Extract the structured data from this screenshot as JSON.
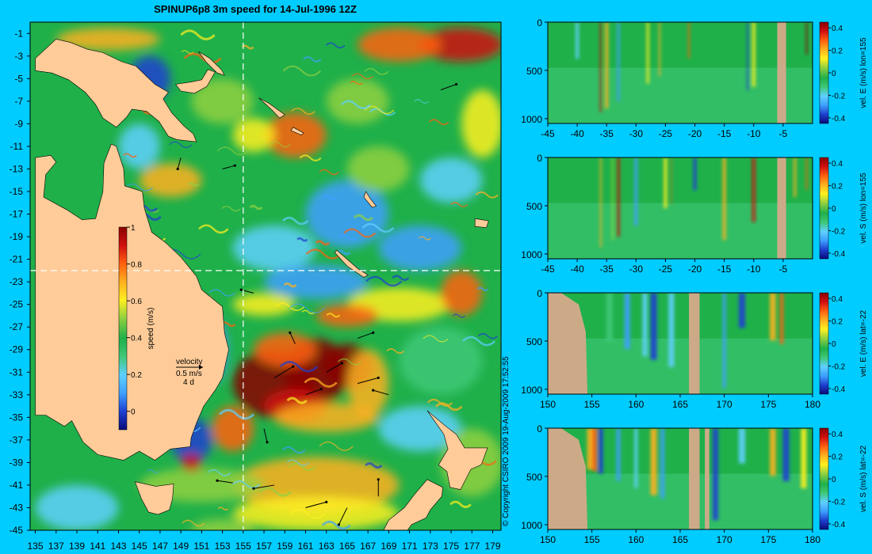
{
  "title": "SPINUP6p8 3m speed for 14-Jul-1996 12Z",
  "copyright": "© Copyright CSIRO 2009   19-Aug-2009 17:52:55",
  "colors": {
    "background": "#00ccff",
    "land": "#ffcc99",
    "section_land": "#ccaa88"
  },
  "colormap": [
    "#0a0a7a",
    "#1e40d0",
    "#3ea0ff",
    "#5fd0ff",
    "#40c878",
    "#1fb04a",
    "#90d040",
    "#fff020",
    "#ffb020",
    "#ff6010",
    "#d01010",
    "#8a0000"
  ],
  "chart_data": [
    {
      "type": "heatmap",
      "title": "SPINUP6p8 3m speed for 14-Jul-1996 12Z",
      "x_ticks": [
        "135",
        "137",
        "139",
        "141",
        "143",
        "145",
        "147",
        "149",
        "151",
        "153",
        "155",
        "157",
        "159",
        "161",
        "163",
        "165",
        "167",
        "169",
        "171",
        "173",
        "175",
        "177",
        "179"
      ],
      "y_ticks": [
        "-1",
        "-3",
        "-5",
        "-7",
        "-9",
        "-11",
        "-13",
        "-15",
        "-17",
        "-19",
        "-21",
        "-23",
        "-25",
        "-27",
        "-29",
        "-31",
        "-33",
        "-35",
        "-37",
        "-39",
        "-41",
        "-43",
        "-45"
      ],
      "xlim": [
        134.5,
        179.8
      ],
      "ylim": [
        -45,
        0
      ],
      "colorbar": {
        "label": "speed (m/s)",
        "ticks": [
          "1",
          "0.8",
          "0.6",
          "0.4",
          "0.2",
          "0"
        ],
        "range": [
          -0.1,
          1
        ]
      },
      "velocity_legend": {
        "label": "velocity",
        "speed": "0.5 m/s",
        "duration": "4 d"
      },
      "section_lines": {
        "lon": 155,
        "lat": -22
      }
    },
    {
      "type": "heatmap",
      "ylabel": "vel. E (m/s) lon=155",
      "x_ticks": [
        "-45",
        "-40",
        "-35",
        "-30",
        "-25",
        "-20",
        "-15",
        "-10",
        "-5"
      ],
      "xlim": [
        -45,
        0
      ],
      "y_ticks": [
        "0",
        "500",
        "1000"
      ],
      "ylim": [
        1050,
        0
      ],
      "colorbar_ticks": [
        "0.4",
        "0.2",
        "0",
        "-0.2",
        "-0.4"
      ],
      "crange": [
        -0.45,
        0.45
      ]
    },
    {
      "type": "heatmap",
      "ylabel": "vel. S (m/s) lon=155",
      "x_ticks": [
        "-45",
        "-40",
        "-35",
        "-30",
        "-25",
        "-20",
        "-15",
        "-10",
        "-5"
      ],
      "xlim": [
        -45,
        0
      ],
      "y_ticks": [
        "0",
        "500",
        "1000"
      ],
      "ylim": [
        1050,
        0
      ],
      "colorbar_ticks": [
        "0.4",
        "0.2",
        "0",
        "-0.2",
        "-0.4"
      ],
      "crange": [
        -0.45,
        0.45
      ]
    },
    {
      "type": "heatmap",
      "ylabel": "vel. E (m/s) lat=-22",
      "x_ticks": [
        "150",
        "155",
        "160",
        "165",
        "170",
        "175",
        "180"
      ],
      "xlim": [
        150,
        180
      ],
      "y_ticks": [
        "0",
        "500",
        "1000"
      ],
      "ylim": [
        1050,
        0
      ],
      "colorbar_ticks": [
        "0.4",
        "0.2",
        "0",
        "-0.2",
        "-0.4"
      ],
      "crange": [
        -0.45,
        0.45
      ]
    },
    {
      "type": "heatmap",
      "ylabel": "vel. S (m/s) lat=-22",
      "x_ticks": [
        "150",
        "155",
        "160",
        "165",
        "170",
        "175",
        "180"
      ],
      "xlim": [
        150,
        180
      ],
      "y_ticks": [
        "0",
        "500",
        "1000"
      ],
      "ylim": [
        1050,
        0
      ],
      "colorbar_ticks": [
        "0.4",
        "0.2",
        "0",
        "-0.2",
        "-0.4"
      ],
      "crange": [
        -0.45,
        0.45
      ]
    }
  ]
}
